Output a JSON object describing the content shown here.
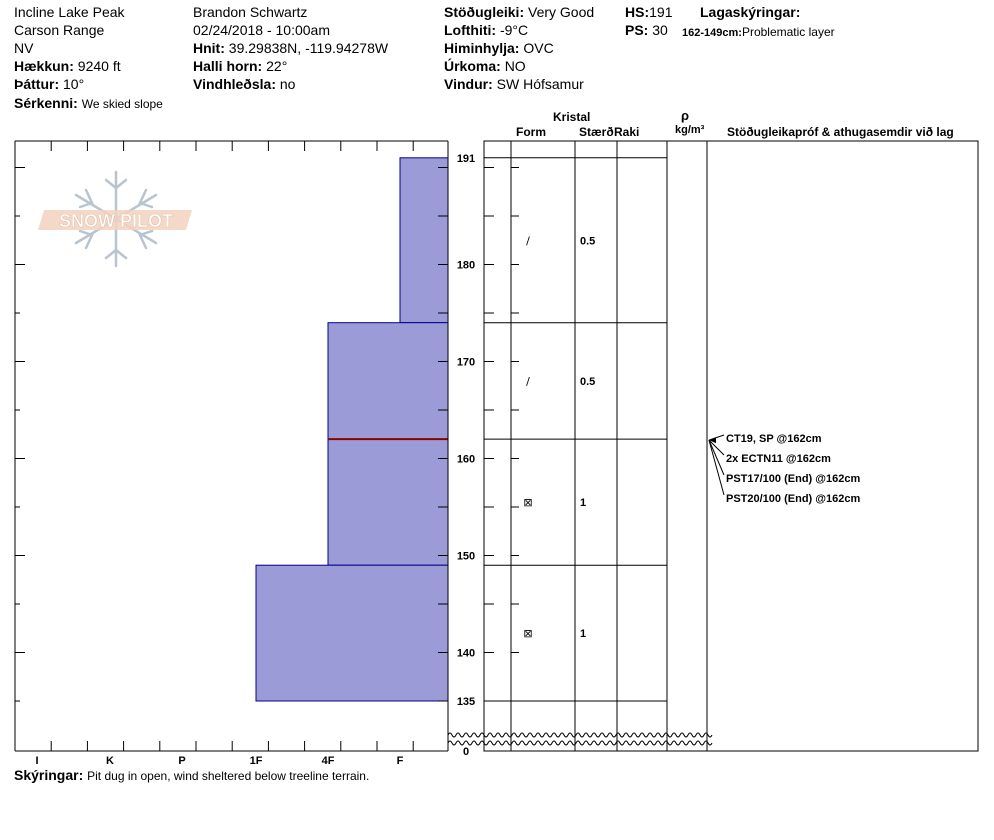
{
  "header": {
    "location": "Incline Lake Peak",
    "range": "Carson Range",
    "state": "NV",
    "elevation_label": "Hækkun:",
    "elevation_value": "9240 ft",
    "aspect_label": "Þáttur:",
    "aspect_value": "10°",
    "feature_label": "Sérkenni:",
    "feature_value": "We skied slope",
    "observer": "Brandon Schwartz",
    "datetime": "02/24/2018 - 10:00am",
    "coords_label": "Hnit:",
    "coords_value": "39.29838N, -119.94278W",
    "slope_label": "Halli horn:",
    "slope_value": "22°",
    "wind_loading_label": "Vindhleðsla:",
    "wind_loading_value": "no",
    "stability_label": "Stöðugleiki:",
    "stability_value": "Very Good",
    "air_temp_label": "Lofthiti:",
    "air_temp_value": "-9°C",
    "sky_label": "Himinhylja:",
    "sky_value": "OVC",
    "precip_label": "Úrkoma:",
    "precip_value": "NO",
    "wind_label": "Vindur:",
    "wind_value": "SW Hófsamur",
    "hs_label": "HS:",
    "hs_value": "191",
    "ps_label": "PS:",
    "ps_value": "30",
    "layer_notes_label": "Lagaskýringar:",
    "layer_note_range": "162-149cm:",
    "layer_note_text": "Problematic layer"
  },
  "logo": {
    "text": "SNOW PILOT"
  },
  "columns": {
    "crystal": "Kristal",
    "form": "Form",
    "size": "Stærð",
    "moisture": "Raki",
    "rho": "ρ",
    "density_unit": "kg/m³",
    "stability_comments": "Stöðugleikapróf & athugasemdir við lag"
  },
  "footer": {
    "comments_label": "Skýringar:",
    "comments_value": "Pit dug in open, wind sheltered below treeline terrain."
  },
  "chart_data": {
    "type": "bar",
    "title": "",
    "hardness_categories": [
      "I",
      "K",
      "P",
      "1F",
      "4F",
      "F"
    ],
    "height_ticks": [
      191,
      180,
      170,
      160,
      150,
      140,
      135,
      0
    ],
    "y_range": [
      135,
      193
    ],
    "layers": [
      {
        "top": 191,
        "bottom": 174,
        "hardness": "F",
        "form": "/",
        "size": "0.5"
      },
      {
        "top": 174,
        "bottom": 162,
        "hardness": "4F",
        "form": "/",
        "size": "0.5"
      },
      {
        "top": 162,
        "bottom": 149,
        "hardness": "4F",
        "form": "⊠",
        "size": "1"
      },
      {
        "top": 149,
        "bottom": 135,
        "hardness": "1F",
        "form": "⊠",
        "size": "1"
      }
    ],
    "problem_layer_height": 162,
    "stability_tests": [
      "CT19, SP @162cm",
      "2x ECTN11 @162cm",
      "PST17/100 (End) @162cm",
      "PST20/100 (End) @162cm"
    ],
    "colors": {
      "bar_fill": "#9b9bd7",
      "bar_stroke": "#00008b",
      "problem_line": "#8b0000"
    }
  }
}
